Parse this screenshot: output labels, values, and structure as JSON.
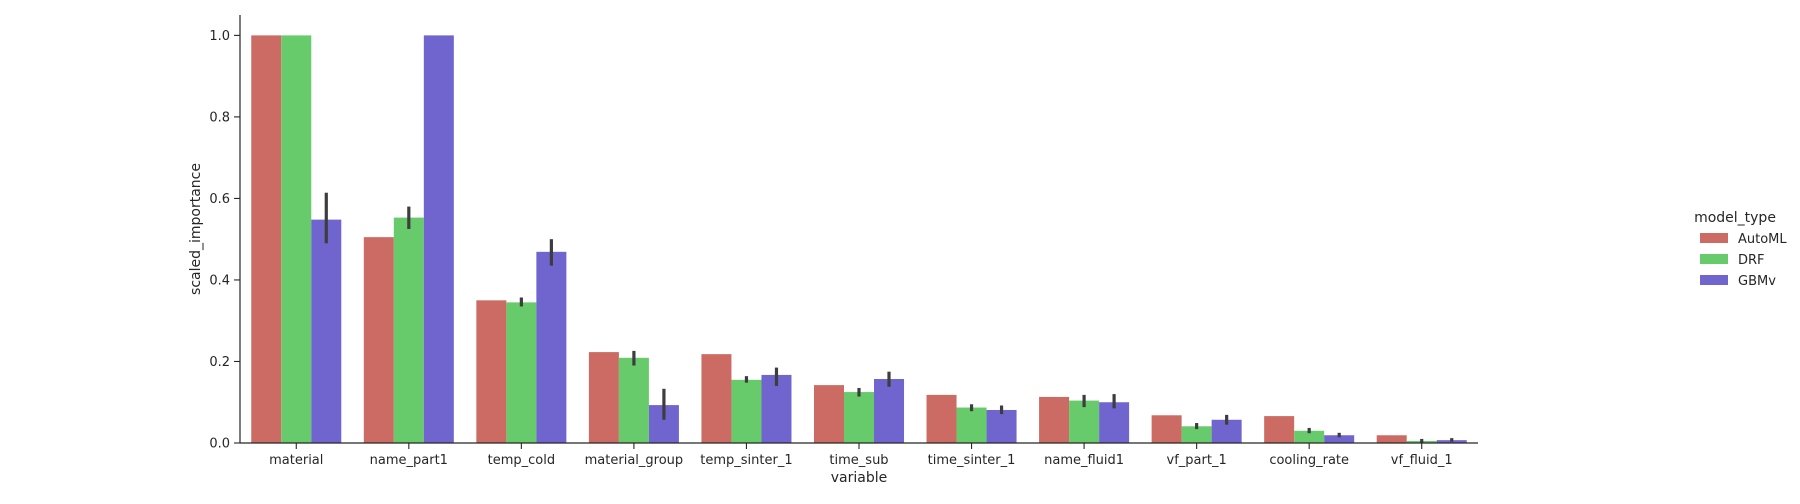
{
  "chart_data": {
    "type": "bar",
    "title": "",
    "xlabel": "variable",
    "ylabel": "scaled_importance",
    "ylim": [
      0,
      1.05
    ],
    "yticks": [
      0.0,
      0.2,
      0.4,
      0.6,
      0.8,
      1.0
    ],
    "ytick_labels": [
      "0.0",
      "0.2",
      "0.4",
      "0.6",
      "0.8",
      "1.0"
    ],
    "grid": false,
    "legend_placement": "right",
    "legend_title": "model_type",
    "categories": [
      "material",
      "name_part1",
      "temp_cold",
      "material_group",
      "temp_sinter_1",
      "time_sub",
      "time_sinter_1",
      "name_fluid1",
      "vf_part_1",
      "cooling_rate",
      "vf_fluid_1"
    ],
    "series": [
      {
        "name": "AutoML",
        "color": "#cb6b63",
        "values": [
          1.0,
          0.505,
          0.35,
          0.223,
          0.218,
          0.142,
          0.118,
          0.113,
          0.068,
          0.066,
          0.019
        ],
        "err_low": [
          null,
          null,
          null,
          null,
          null,
          null,
          null,
          null,
          null,
          null,
          null
        ],
        "err_high": [
          null,
          null,
          null,
          null,
          null,
          null,
          null,
          null,
          null,
          null,
          null
        ]
      },
      {
        "name": "DRF",
        "color": "#68cb6b",
        "values": [
          1.0,
          0.553,
          0.345,
          0.209,
          0.155,
          0.125,
          0.087,
          0.104,
          0.041,
          0.03,
          0.005
        ],
        "err_low": [
          null,
          0.525,
          0.335,
          0.19,
          0.148,
          0.114,
          0.078,
          0.088,
          0.034,
          0.024,
          0.001
        ],
        "err_high": [
          null,
          0.58,
          0.357,
          0.226,
          0.164,
          0.135,
          0.095,
          0.118,
          0.049,
          0.037,
          0.01
        ]
      },
      {
        "name": "GBMv",
        "color": "#7065cf",
        "values": [
          0.548,
          1.0,
          0.469,
          0.093,
          0.167,
          0.157,
          0.081,
          0.1,
          0.057,
          0.019,
          0.007
        ],
        "err_low": [
          0.49,
          null,
          0.435,
          0.057,
          0.14,
          0.138,
          0.071,
          0.085,
          0.045,
          0.014,
          0.003
        ],
        "err_high": [
          0.614,
          null,
          0.5,
          0.133,
          0.185,
          0.175,
          0.092,
          0.12,
          0.069,
          0.025,
          0.012
        ]
      }
    ]
  }
}
